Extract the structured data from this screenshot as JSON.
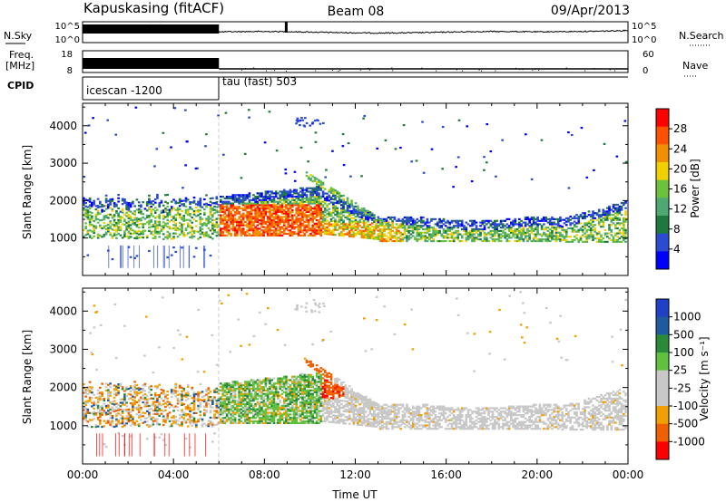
{
  "header": {
    "station": "Kapuskasing (fitACF)",
    "beam": "Beam 08",
    "date": "09/Apr/2013"
  },
  "left_labels": {
    "nsky": "N.Sky",
    "freq": "Freq.",
    "mhz": "[MHz]",
    "cpid": "CPID"
  },
  "right_labels": {
    "nsearch": "N.Search",
    "nave": "Nave"
  },
  "strip_ticks": {
    "noise_top_left": "10^5",
    "noise_bottom_left": "10^0",
    "noise_top_right": "10^5",
    "noise_bottom_right": "10^0",
    "freq_top": "18",
    "freq_bottom": "8",
    "nave_top": "60",
    "nave_bottom": "0"
  },
  "cpid_segments": [
    {
      "label": "icescan -1200",
      "start_hour": 0,
      "end_hour": 6
    },
    {
      "label": "tau (fast) 503",
      "start_hour": 6,
      "end_hour": 24
    }
  ],
  "colors": {
    "power": [
      "#0000ff",
      "#2a4bd2",
      "#1e7a3c",
      "#4ea872",
      "#6cc23a",
      "#f0d000",
      "#f09000",
      "#ff5000",
      "#ff0000"
    ],
    "velocity": [
      "#ff0000",
      "#f06000",
      "#f0a000",
      "#c8c8c8",
      "#c8c8c8",
      "#60c040",
      "#2a8a3a",
      "#1e5aa0",
      "#2040c8"
    ],
    "gray": "#c8c8c8"
  },
  "chart_data": [
    {
      "type": "heatmap",
      "panel": "power",
      "xlabel": "",
      "ylabel": "Slant Range [km]",
      "xlim": [
        0,
        24
      ],
      "ylim": [
        0,
        4600
      ],
      "yticks": [
        1000,
        2000,
        3000,
        4000
      ],
      "colorbar": {
        "label": "Power [dB]",
        "min": 0,
        "max": 32,
        "ticks": [
          4,
          8,
          12,
          16,
          20,
          24,
          28
        ]
      }
    },
    {
      "type": "heatmap",
      "panel": "velocity",
      "xlabel": "Time UT",
      "ylabel": "Slant Range [km]",
      "xlim": [
        0,
        24
      ],
      "ylim": [
        0,
        4600
      ],
      "xticks": [
        "00:00",
        "04:00",
        "08:00",
        "12:00",
        "16:00",
        "20:00",
        "00:00"
      ],
      "yticks": [
        1000,
        2000,
        3000,
        4000
      ],
      "colorbar": {
        "label": "Velocity [m s⁻¹]",
        "ticks": [
          "1000",
          "500",
          "100",
          "25",
          "-25",
          "-100",
          "-500",
          "-1000"
        ]
      }
    }
  ]
}
